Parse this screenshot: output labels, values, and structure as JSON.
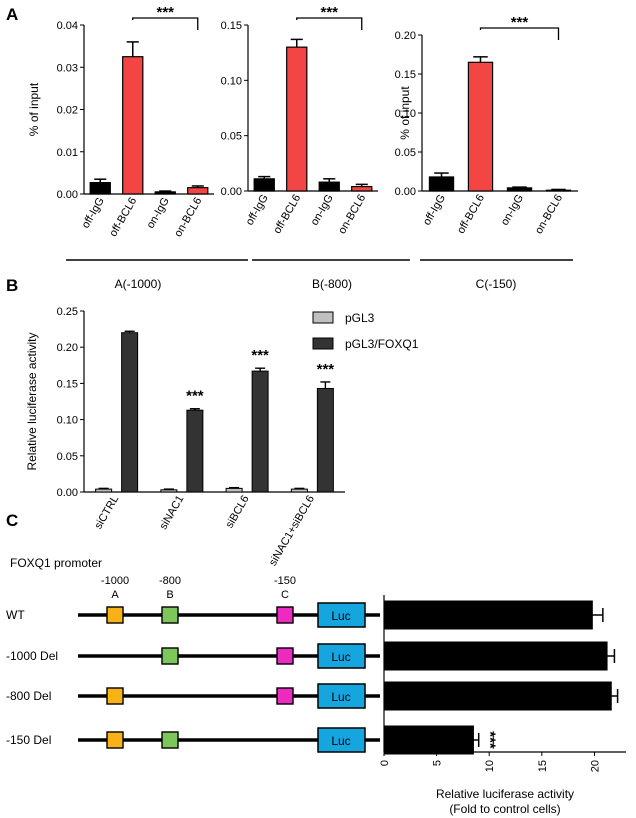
{
  "panel_labels": [
    "A",
    "B",
    "C"
  ],
  "colors": {
    "black": "#000000",
    "red": "#f44545",
    "dark": "#333333",
    "light": "#c0c0c0",
    "ch_a": "#f9b215",
    "ch_b": "#7dc65a",
    "ch_c": "#ec2bc0",
    "luc": "#15a6e0"
  },
  "chart_data": [
    {
      "id": "A1",
      "type": "bar",
      "ylabel": "% of input",
      "categories": [
        "off-IgG",
        "off-BCL6",
        "on-IgG",
        "on-BCL6"
      ],
      "values": [
        0.0027,
        0.0325,
        0.0005,
        0.0015
      ],
      "errors": [
        0.0008,
        0.0035,
        0.0002,
        0.0004
      ],
      "bar_colors": [
        "black",
        "red",
        "black",
        "red"
      ],
      "ylim": [
        0,
        0.04
      ],
      "yticks": [
        "0.00",
        "0.01",
        "0.02",
        "0.03",
        "0.04"
      ],
      "ytick_values": [
        0,
        0.01,
        0.02,
        0.03,
        0.04
      ],
      "group_label": "A(-1000)",
      "significance": "***"
    },
    {
      "id": "A2",
      "type": "bar",
      "ylabel": "",
      "categories": [
        "off-IgG",
        "off-BCL6",
        "on-IgG",
        "on-BCL6"
      ],
      "values": [
        0.011,
        0.13,
        0.008,
        0.004
      ],
      "errors": [
        0.002,
        0.007,
        0.003,
        0.002
      ],
      "bar_colors": [
        "black",
        "red",
        "black",
        "red"
      ],
      "ylim": [
        0,
        0.15
      ],
      "yticks": [
        "0.00",
        "0.05",
        "0.10",
        "0.15"
      ],
      "ytick_values": [
        0,
        0.05,
        0.1,
        0.15
      ],
      "group_label": "B(-800)",
      "significance": "***"
    },
    {
      "id": "A3",
      "type": "bar",
      "ylabel": "% of input",
      "categories": [
        "off-IgG",
        "off-BCL6",
        "on-IgG",
        "on-BCL6"
      ],
      "values": [
        0.018,
        0.165,
        0.004,
        0.001
      ],
      "errors": [
        0.005,
        0.007,
        0.001,
        0.001
      ],
      "bar_colors": [
        "black",
        "red",
        "black",
        "red"
      ],
      "ylim": [
        0,
        0.2
      ],
      "yticks": [
        "0.00",
        "0.05",
        "0.10",
        "0.15",
        "0.20"
      ],
      "ytick_values": [
        0,
        0.05,
        0.1,
        0.15,
        0.2
      ],
      "group_label": "C(-150)",
      "significance": "***"
    },
    {
      "id": "B",
      "type": "bar",
      "ylabel": "Relative luciferase activity",
      "categories": [
        "siCTRL",
        "siNAC1",
        "siBCL6",
        "siNAC1+siBCL6"
      ],
      "series": [
        {
          "name": "pGL3",
          "color": "light",
          "values": [
            0.004,
            0.003,
            0.005,
            0.004
          ],
          "errors": [
            0.001,
            0.001,
            0.001,
            0.001
          ]
        },
        {
          "name": "pGL3/FOXQ1",
          "color": "dark",
          "values": [
            0.22,
            0.113,
            0.167,
            0.143
          ],
          "errors": [
            0.002,
            0.002,
            0.004,
            0.009
          ]
        }
      ],
      "significance": [
        "",
        "***",
        "***",
        "***"
      ],
      "ylim": [
        0,
        0.25
      ],
      "yticks": [
        "0.00",
        "0.05",
        "0.10",
        "0.15",
        "0.20",
        "0.25"
      ],
      "ytick_values": [
        0,
        0.05,
        0.1,
        0.15,
        0.2,
        0.25
      ],
      "legend_position": "top-right"
    },
    {
      "id": "C",
      "type": "bar",
      "orientation": "horizontal",
      "xlabel_line1": "Relative luciferase activity",
      "xlabel_line2": "(Fold to control cells)",
      "categories": [
        "WT",
        "-1000 Del",
        "-800 Del",
        "-150 Del"
      ],
      "values": [
        19.8,
        21.2,
        21.6,
        8.5
      ],
      "errors": [
        1.0,
        0.7,
        0.6,
        0.5
      ],
      "significance": [
        "",
        "",
        "",
        "***"
      ],
      "xlim": [
        0,
        23
      ],
      "xticks": [
        "0",
        "5",
        "10",
        "15",
        "20"
      ],
      "xtick_values": [
        0,
        5,
        10,
        15,
        20
      ]
    }
  ],
  "promoter": {
    "title": "FOXQ1 promoter",
    "positions": [
      "-1000",
      "-800",
      "-150"
    ],
    "letters": [
      "A",
      "B",
      "C"
    ],
    "luc_label": "Luc",
    "constructs": [
      {
        "name": "WT",
        "present": [
          true,
          true,
          true
        ]
      },
      {
        "name": "-1000 Del",
        "present": [
          false,
          true,
          true
        ]
      },
      {
        "name": "-800 Del",
        "present": [
          true,
          false,
          true
        ]
      },
      {
        "name": "-150 Del",
        "present": [
          true,
          true,
          false
        ]
      }
    ]
  }
}
